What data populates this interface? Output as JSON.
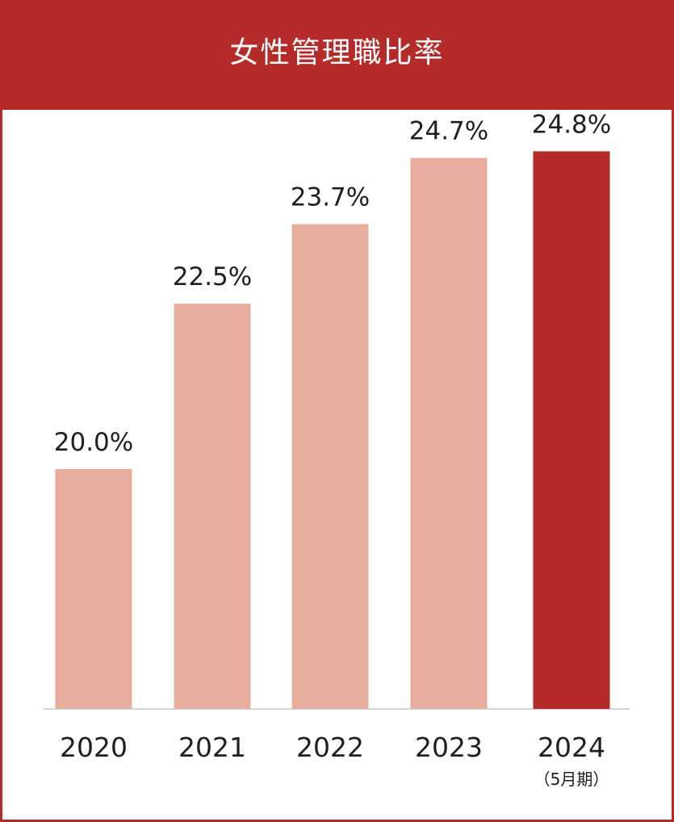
{
  "chart_data": {
    "type": "bar",
    "title": "女性管理職比率",
    "categories": [
      "2020",
      "2021",
      "2022",
      "2023",
      "2024"
    ],
    "category_sublabels": [
      "",
      "",
      "",
      "",
      "（5月期）"
    ],
    "values": [
      20.0,
      22.5,
      23.7,
      24.7,
      24.8
    ],
    "value_labels": [
      "20.0%",
      "22.5%",
      "23.7%",
      "24.7%",
      "24.8%"
    ],
    "ylim": [
      0,
      30
    ],
    "grid": false,
    "legend": "none",
    "colors": {
      "header": "#b52b29",
      "default_bar": "#e8ae9d",
      "highlight_bar": "#b52b29",
      "axis": "#d6d6d6",
      "text": "#1f1f1f"
    },
    "highlight_index": 4
  }
}
